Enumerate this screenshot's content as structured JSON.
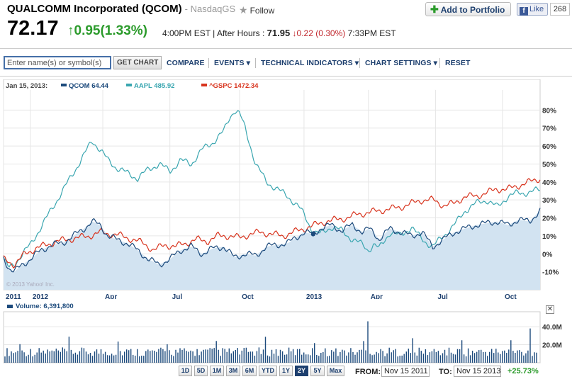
{
  "header": {
    "company": "QUALCOMM Incorporated (QCOM)",
    "exchange": "- NasdaqGS",
    "follow_label": "Follow",
    "portfolio_label": "Add to Portfolio",
    "like_label": "Like",
    "like_count": "268",
    "price": "72.17",
    "change": "0.95(1.33%)",
    "time": "4:00PM EST",
    "after_hours_label": "After Hours :",
    "after_hours_price": "71.95",
    "after_hours_change": "0.22 (0.30%)",
    "after_hours_time": "7:33PM EST",
    "colors": {
      "up": "#2c9b2c",
      "down": "#c0262c",
      "brand": "#1d3f6e"
    }
  },
  "toolbar": {
    "search_placeholder": "Enter name(s) or symbol(s)",
    "get_chart": "GET CHART",
    "compare": "COMPARE",
    "events": "EVENTS",
    "technical": "TECHNICAL INDICATORS",
    "settings": "CHART SETTINGS",
    "reset": "RESET"
  },
  "chart_data": {
    "type": "line",
    "legend_date": "Jan 15, 2013:",
    "legend_position": "top-left",
    "watermark": "© 2013 Yahoo! Inc.",
    "grid": true,
    "x_ticks": [
      {
        "label": "2011",
        "pos": 0.0
      },
      {
        "label": "2012",
        "pos": 0.05
      },
      {
        "label": "Apr",
        "pos": 0.185
      },
      {
        "label": "Jul",
        "pos": 0.31
      },
      {
        "label": "Oct",
        "pos": 0.44
      },
      {
        "label": "2013",
        "pos": 0.56
      },
      {
        "label": "Apr",
        "pos": 0.68
      },
      {
        "label": "Jul",
        "pos": 0.805
      },
      {
        "label": "Oct",
        "pos": 0.93
      }
    ],
    "y_ticks": [
      80,
      70,
      60,
      50,
      40,
      30,
      20,
      10,
      0,
      -10
    ],
    "ylim": [
      -20,
      90
    ],
    "y_unit": "%",
    "series": [
      {
        "name": "QCOM",
        "value_label": "64.44",
        "color": "#1c4a7c",
        "fill": "#d2e3f1",
        "marker_pos": 0.577,
        "marker_value": 11,
        "x": [
          0,
          0.01,
          0.02,
          0.035,
          0.05,
          0.07,
          0.09,
          0.11,
          0.13,
          0.15,
          0.165,
          0.18,
          0.195,
          0.21,
          0.23,
          0.25,
          0.27,
          0.29,
          0.31,
          0.33,
          0.35,
          0.37,
          0.39,
          0.41,
          0.43,
          0.45,
          0.47,
          0.49,
          0.51,
          0.53,
          0.55,
          0.56,
          0.577,
          0.59,
          0.61,
          0.63,
          0.65,
          0.67,
          0.68,
          0.69,
          0.7,
          0.72,
          0.74,
          0.76,
          0.78,
          0.8,
          0.82,
          0.84,
          0.86,
          0.88,
          0.9,
          0.92,
          0.94,
          0.96,
          0.98,
          1.0
        ],
        "values": [
          -2,
          -8,
          -10,
          -6,
          -3,
          2,
          5,
          6,
          10,
          14,
          18,
          16,
          10,
          8,
          6,
          2,
          -3,
          -6,
          -3,
          2,
          4,
          0,
          3,
          4,
          -2,
          0,
          -1,
          4,
          5,
          6,
          10,
          12,
          11,
          14,
          16,
          13,
          16,
          12,
          14,
          12,
          8,
          14,
          12,
          10,
          12,
          4,
          8,
          12,
          14,
          16,
          17,
          18,
          16,
          19,
          18,
          24
        ],
        "ylabel": ""
      },
      {
        "name": "AAPL",
        "value_label": "485.92",
        "color": "#3aa6b0",
        "x": [
          0,
          0.01,
          0.02,
          0.035,
          0.05,
          0.07,
          0.09,
          0.11,
          0.13,
          0.15,
          0.165,
          0.18,
          0.195,
          0.21,
          0.23,
          0.25,
          0.27,
          0.29,
          0.31,
          0.33,
          0.35,
          0.37,
          0.39,
          0.41,
          0.42,
          0.43,
          0.44,
          0.45,
          0.46,
          0.47,
          0.49,
          0.51,
          0.53,
          0.55,
          0.56,
          0.577,
          0.59,
          0.61,
          0.63,
          0.65,
          0.67,
          0.68,
          0.69,
          0.7,
          0.72,
          0.74,
          0.76,
          0.78,
          0.8,
          0.82,
          0.84,
          0.86,
          0.88,
          0.9,
          0.92,
          0.94,
          0.96,
          0.98,
          1.0
        ],
        "values": [
          -3,
          -8,
          -6,
          0,
          5,
          15,
          25,
          35,
          45,
          55,
          63,
          58,
          52,
          48,
          45,
          42,
          47,
          50,
          46,
          52,
          50,
          58,
          62,
          68,
          75,
          80,
          78,
          70,
          60,
          50,
          40,
          36,
          32,
          26,
          22,
          12,
          11,
          15,
          13,
          8,
          5,
          2,
          5,
          3,
          12,
          10,
          15,
          8,
          4,
          10,
          16,
          24,
          28,
          30,
          26,
          32,
          34,
          34,
          36
        ]
      },
      {
        "name": "^GSPC",
        "value_label": "1472.34",
        "color": "#d8341e",
        "x": [
          0,
          0.02,
          0.04,
          0.06,
          0.08,
          0.1,
          0.12,
          0.14,
          0.16,
          0.18,
          0.2,
          0.22,
          0.24,
          0.26,
          0.28,
          0.3,
          0.32,
          0.34,
          0.36,
          0.38,
          0.4,
          0.42,
          0.44,
          0.46,
          0.48,
          0.5,
          0.52,
          0.54,
          0.56,
          0.58,
          0.6,
          0.62,
          0.64,
          0.66,
          0.68,
          0.7,
          0.72,
          0.74,
          0.76,
          0.78,
          0.8,
          0.82,
          0.84,
          0.86,
          0.88,
          0.9,
          0.92,
          0.94,
          0.96,
          0.98,
          1.0
        ],
        "values": [
          -3,
          -6,
          0,
          3,
          5,
          7,
          8,
          9,
          10,
          12,
          11,
          10,
          8,
          6,
          2,
          5,
          4,
          6,
          8,
          7,
          10,
          10,
          9,
          11,
          12,
          11,
          10,
          12,
          14,
          16,
          18,
          19,
          20,
          22,
          23,
          24,
          25,
          26,
          28,
          30,
          30,
          27,
          28,
          32,
          32,
          34,
          36,
          36,
          38,
          40,
          42
        ]
      }
    ],
    "volume": {
      "label": "Volume: 6,391,800",
      "color": "#1c4a7c",
      "y_ticks": [
        "40.0M",
        "20.0M"
      ],
      "ylim": [
        0,
        55
      ]
    }
  },
  "range": {
    "buttons": [
      "1D",
      "5D",
      "1M",
      "3M",
      "6M",
      "YTD",
      "1Y",
      "2Y",
      "5Y",
      "Max"
    ],
    "active": "2Y",
    "from_label": "FROM:",
    "from_date": "Nov 15 2011",
    "to_label": "TO:",
    "to_date": "Nov 15 2013",
    "range_change": "+25.73%"
  }
}
